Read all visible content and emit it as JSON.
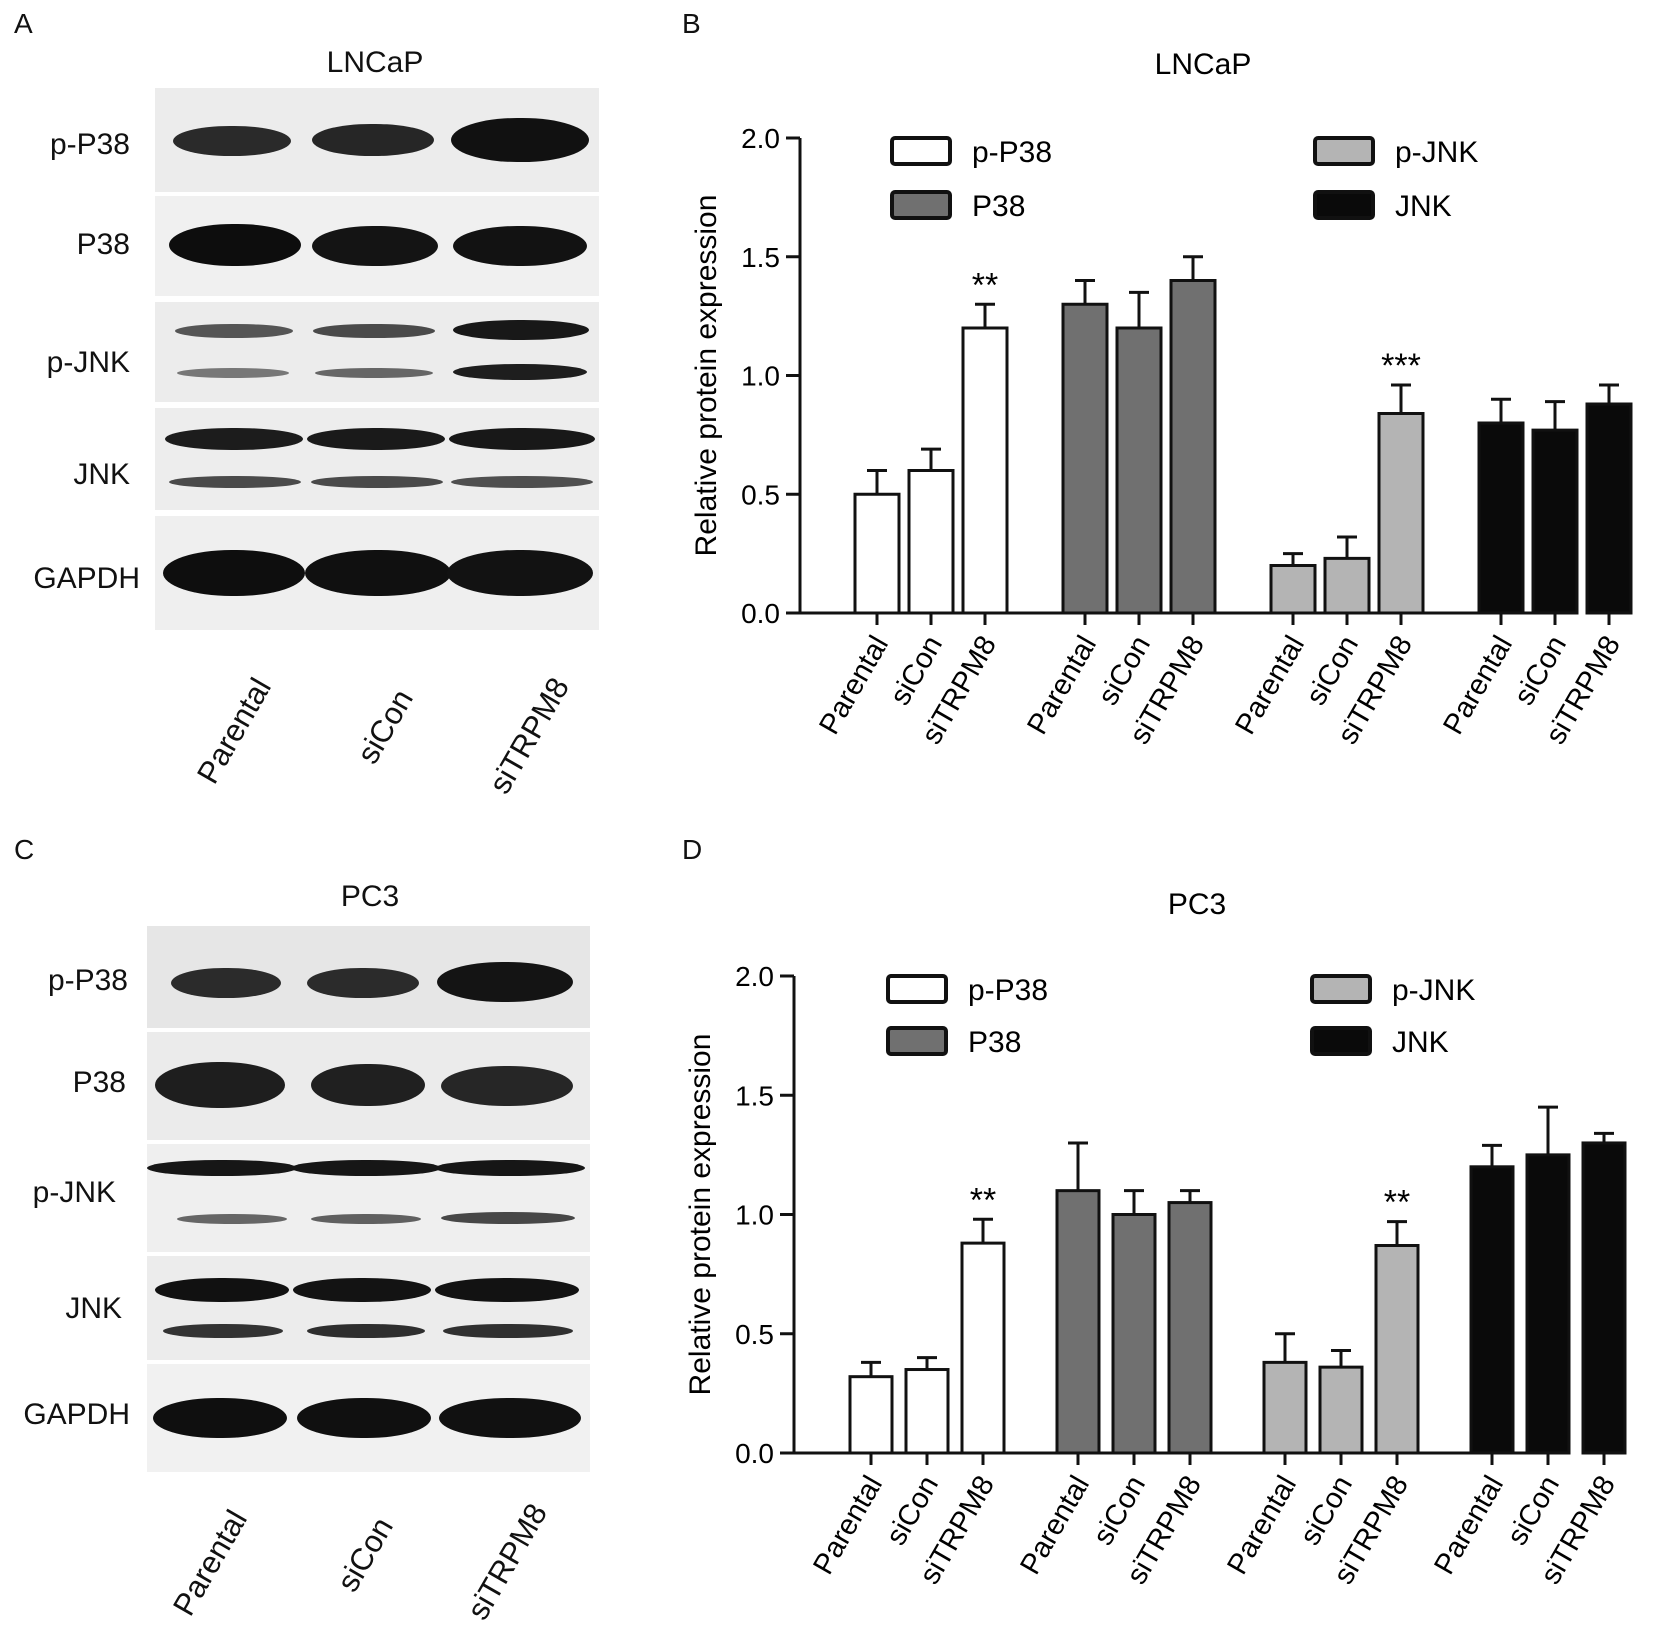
{
  "panels": {
    "A": {
      "letter": "A",
      "title": "LNCaP",
      "rows": [
        "p-P38",
        "P38",
        "p-JNK",
        "JNK",
        "GAPDH"
      ],
      "lanes": [
        "Parental",
        "siCon",
        "siTRPM8"
      ]
    },
    "B": {
      "letter": "B"
    },
    "C": {
      "letter": "C",
      "title": "PC3",
      "rows": [
        "p-P38",
        "P38",
        "p-JNK",
        "JNK",
        "GAPDH"
      ],
      "lanes": [
        "Parental",
        "siCon",
        "siTRPM8"
      ]
    },
    "D": {
      "letter": "D"
    }
  },
  "chart_data": [
    {
      "type": "bar",
      "panel": "B",
      "title": "LNCaP",
      "ylabel": "Relative protein expression",
      "ylim": [
        0,
        2.0
      ],
      "yticks": [
        "0.0",
        "0.5",
        "1.0",
        "1.5",
        "2.0"
      ],
      "categories": [
        "Parental",
        "siCon",
        "siTRPM8"
      ],
      "legend_position": "top",
      "grid": false,
      "series": [
        {
          "name": "p-P38",
          "color": "#ffffff",
          "values": [
            0.5,
            0.6,
            1.2
          ],
          "errors": [
            0.1,
            0.09,
            0.1
          ],
          "annotations": [
            "",
            "",
            "**"
          ]
        },
        {
          "name": "P38",
          "color": "#707070",
          "values": [
            1.3,
            1.2,
            1.4
          ],
          "errors": [
            0.1,
            0.15,
            0.1
          ],
          "annotations": [
            "",
            "",
            ""
          ]
        },
        {
          "name": "p-JNK",
          "color": "#b4b4b4",
          "values": [
            0.2,
            0.23,
            0.84
          ],
          "errors": [
            0.05,
            0.09,
            0.12
          ],
          "annotations": [
            "",
            "",
            "***"
          ]
        },
        {
          "name": "JNK",
          "color": "#0a0a0a",
          "values": [
            0.8,
            0.77,
            0.88
          ],
          "errors": [
            0.1,
            0.12,
            0.08
          ],
          "annotations": [
            "",
            "",
            ""
          ]
        }
      ]
    },
    {
      "type": "bar",
      "panel": "D",
      "title": "PC3",
      "ylabel": "Relative protein expression",
      "ylim": [
        0,
        2.0
      ],
      "yticks": [
        "0.0",
        "0.5",
        "1.0",
        "1.5",
        "2.0"
      ],
      "categories": [
        "Parental",
        "siCon",
        "siTRPM8"
      ],
      "legend_position": "top",
      "grid": false,
      "series": [
        {
          "name": "p-P38",
          "color": "#ffffff",
          "values": [
            0.32,
            0.35,
            0.88
          ],
          "errors": [
            0.06,
            0.05,
            0.1
          ],
          "annotations": [
            "",
            "",
            "**"
          ]
        },
        {
          "name": "P38",
          "color": "#707070",
          "values": [
            1.1,
            1.0,
            1.05
          ],
          "errors": [
            0.2,
            0.1,
            0.05
          ],
          "annotations": [
            "",
            "",
            ""
          ]
        },
        {
          "name": "p-JNK",
          "color": "#b4b4b4",
          "values": [
            0.38,
            0.36,
            0.87
          ],
          "errors": [
            0.12,
            0.07,
            0.1
          ],
          "annotations": [
            "",
            "",
            "**"
          ]
        },
        {
          "name": "JNK",
          "color": "#0a0a0a",
          "values": [
            1.2,
            1.25,
            1.3
          ],
          "errors": [
            0.09,
            0.2,
            0.04
          ],
          "annotations": [
            "",
            "",
            ""
          ]
        }
      ]
    }
  ]
}
